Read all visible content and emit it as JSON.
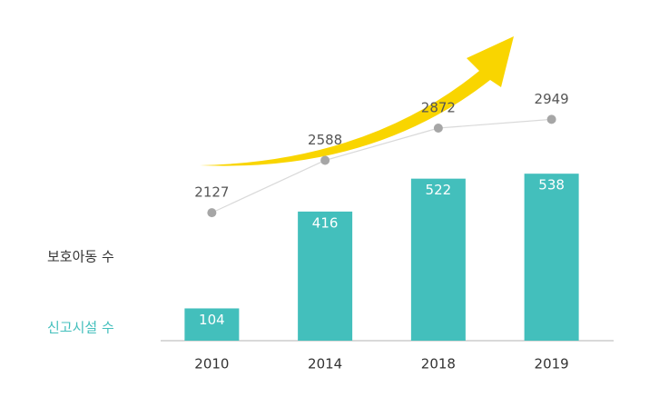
{
  "chart_data": {
    "type": "bar",
    "categories": [
      "2010",
      "2014",
      "2018",
      "2019"
    ],
    "series": [
      {
        "name": "신고시설 수",
        "type": "bar",
        "color": "#43bfbc",
        "label_color": "#43bfbc",
        "values": [
          104,
          416,
          522,
          538
        ]
      },
      {
        "name": "보호아동 수",
        "type": "line",
        "axis": "y2",
        "color": "#a6a6a6",
        "line_color": "#d9d9d9",
        "label_color": "#333333",
        "values": [
          2127,
          2588,
          2872,
          2949
        ]
      }
    ],
    "ylim": [
      0,
      600
    ],
    "y2lim": [
      1000,
      3200
    ],
    "grid": false
  }
}
